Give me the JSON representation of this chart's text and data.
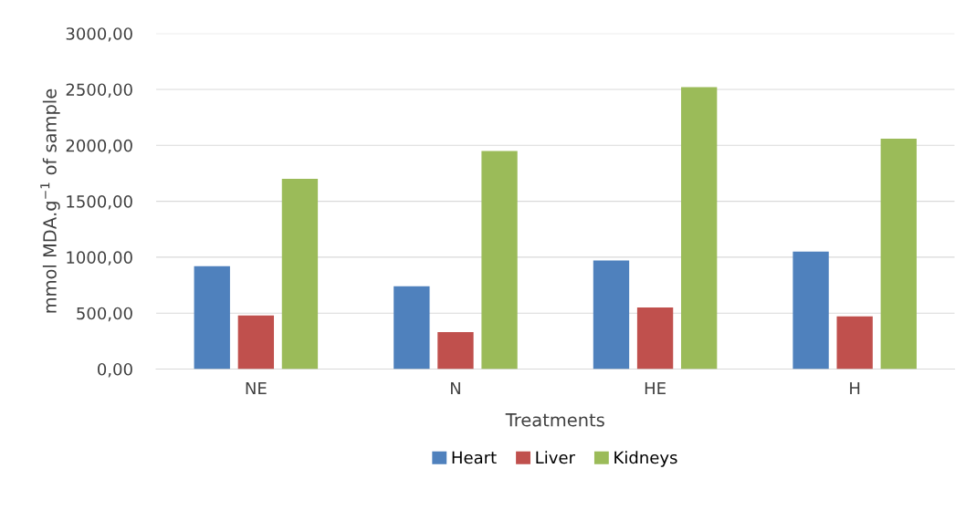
{
  "chart_data": {
    "type": "bar",
    "xlabel": "Treatments",
    "ylabel": "mmol MDA.g$^{−1}$ of sample",
    "categories": [
      "NE",
      "N",
      "HE",
      "H"
    ],
    "series": [
      {
        "name": "Heart",
        "color": "#4f81bd",
        "values": [
          920,
          740,
          970,
          1050
        ]
      },
      {
        "name": "Liver",
        "color": "#c0504d",
        "values": [
          480,
          330,
          550,
          470
        ]
      },
      {
        "name": "Kidneys",
        "color": "#9bbb59",
        "values": [
          1700,
          1950,
          2520,
          2060
        ]
      }
    ],
    "ylim": [
      0,
      3000
    ],
    "yticks": [
      {
        "value": 0,
        "label": "0,00"
      },
      {
        "value": 500,
        "label": "500,00"
      },
      {
        "value": 1000,
        "label": "1000,00"
      },
      {
        "value": 1500,
        "label": "1500,00"
      },
      {
        "value": 2000,
        "label": "2000,00"
      },
      {
        "value": 2500,
        "label": "2500,00"
      },
      {
        "value": 3000,
        "label": "3000,00"
      }
    ],
    "grid": "y",
    "legend": "bottom"
  }
}
